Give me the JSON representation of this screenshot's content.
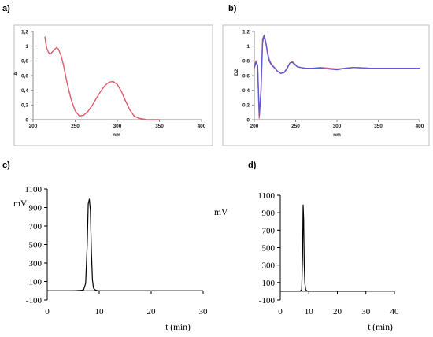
{
  "chart_data": [
    {
      "panel": "a)",
      "type": "line",
      "xlabel": "nm",
      "ylabel": "A",
      "xlim": [
        200,
        400
      ],
      "ylim": [
        0,
        1.2
      ],
      "xticks": [
        "200",
        "250",
        "300",
        "350",
        "400"
      ],
      "yticks": [
        "0",
        "0,2",
        "0,4",
        "0,6",
        "0,8",
        "1",
        "1,2"
      ],
      "grid": false,
      "colors": {
        "line": "#e05a6a",
        "frame": "#bfbfbf"
      },
      "series": [
        {
          "x": [
            214,
            216,
            218,
            220,
            222,
            225,
            228,
            230,
            233,
            236,
            240,
            245,
            250,
            255,
            260,
            265,
            270,
            275,
            280,
            285,
            290,
            295,
            300,
            305,
            310,
            315,
            320,
            325,
            330,
            335,
            340,
            345,
            350
          ],
          "y": [
            1.13,
            0.98,
            0.92,
            0.89,
            0.91,
            0.95,
            0.98,
            0.96,
            0.88,
            0.75,
            0.52,
            0.28,
            0.12,
            0.05,
            0.06,
            0.11,
            0.19,
            0.29,
            0.38,
            0.46,
            0.51,
            0.52,
            0.48,
            0.38,
            0.25,
            0.13,
            0.05,
            0.02,
            0.01,
            0.0,
            0.0,
            0.0,
            0.0
          ]
        }
      ]
    },
    {
      "panel": "b)",
      "type": "line",
      "xlabel": "nm",
      "ylabel": "D2",
      "xlim": [
        200,
        400
      ],
      "ylim": [
        0,
        1.2
      ],
      "xticks": [
        "200",
        "250",
        "300",
        "350",
        "400"
      ],
      "yticks": [
        "0",
        "0,2",
        "0,4",
        "0,6",
        "0,8",
        "1",
        "1,2"
      ],
      "grid": false,
      "colors": {
        "line_a": "#e05a6a",
        "line_b": "#5b5bd6",
        "frame": "#bfbfbf"
      },
      "series": [
        {
          "x": [
            200,
            202,
            204,
            206,
            208,
            210,
            212,
            214,
            216,
            218,
            220,
            222,
            225,
            228,
            232,
            236,
            240,
            243,
            246,
            249,
            252,
            256,
            262,
            270,
            280,
            290,
            300,
            310,
            320,
            340,
            360,
            380,
            400
          ],
          "y": [
            0.72,
            0.8,
            0.72,
            0.02,
            0.4,
            1.1,
            1.15,
            1.05,
            0.92,
            0.82,
            0.77,
            0.74,
            0.7,
            0.66,
            0.63,
            0.64,
            0.7,
            0.77,
            0.79,
            0.76,
            0.72,
            0.71,
            0.7,
            0.7,
            0.71,
            0.7,
            0.69,
            0.7,
            0.71,
            0.7,
            0.7,
            0.7,
            0.7
          ]
        },
        {
          "x": [
            200,
            202,
            204,
            206,
            208,
            210,
            212,
            214,
            216,
            218,
            220,
            222,
            225,
            228,
            232,
            236,
            240,
            243,
            246,
            249,
            252,
            256,
            262,
            270,
            280,
            290,
            300,
            310,
            320,
            340,
            360,
            380,
            400
          ],
          "y": [
            0.7,
            0.78,
            0.74,
            0.06,
            0.35,
            1.05,
            1.14,
            1.04,
            0.9,
            0.8,
            0.76,
            0.73,
            0.7,
            0.66,
            0.63,
            0.64,
            0.71,
            0.77,
            0.78,
            0.75,
            0.72,
            0.71,
            0.7,
            0.7,
            0.7,
            0.69,
            0.68,
            0.7,
            0.71,
            0.7,
            0.7,
            0.7,
            0.7
          ]
        }
      ]
    },
    {
      "panel": "c)",
      "type": "line",
      "xlabel": "t (min)",
      "ylabel": "mV",
      "xlim": [
        0,
        30
      ],
      "ylim": [
        -100,
        1100
      ],
      "xticks": [
        "0",
        "10",
        "20",
        "30"
      ],
      "yticks": [
        "-100",
        "100",
        "300",
        "500",
        "700",
        "900",
        "1100"
      ],
      "grid": false,
      "colors": {
        "line": "#000000"
      },
      "series": [
        {
          "x": [
            0,
            5,
            6.5,
            7,
            7.4,
            7.7,
            7.9,
            8.1,
            8.3,
            8.5,
            8.7,
            8.9,
            9.2,
            9.6,
            10,
            30
          ],
          "y": [
            0,
            0,
            5,
            10,
            80,
            500,
            940,
            990,
            870,
            420,
            120,
            30,
            10,
            2,
            0,
            0
          ]
        }
      ]
    },
    {
      "panel": "d)",
      "type": "line",
      "xlabel": "t (min)",
      "ylabel": "mV",
      "xlim": [
        0,
        40
      ],
      "ylim": [
        -100,
        1100
      ],
      "xticks": [
        "0",
        "10",
        "20",
        "30",
        "40"
      ],
      "yticks": [
        "-100",
        "100",
        "300",
        "500",
        "700",
        "900",
        "1100"
      ],
      "grid": false,
      "colors": {
        "line": "#000000"
      },
      "series": [
        {
          "x": [
            0,
            7,
            7.5,
            7.8,
            8.0,
            8.2,
            8.4,
            8.6,
            8.9,
            9.3,
            10,
            30
          ],
          "y": [
            0,
            2,
            20,
            400,
            990,
            820,
            320,
            90,
            20,
            5,
            0,
            0
          ]
        }
      ]
    }
  ]
}
